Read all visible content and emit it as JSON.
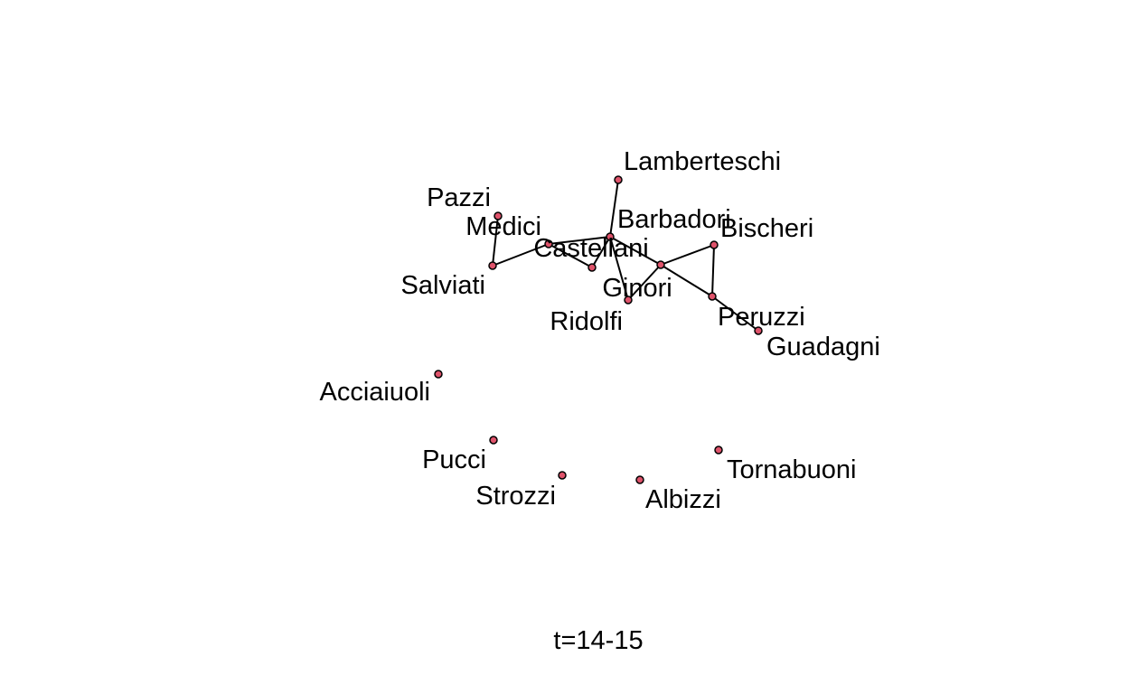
{
  "network": {
    "caption": "t=14-15",
    "node_color": "#DF536B",
    "edge_color": "#000000",
    "nodes": [
      {
        "id": "lamberteschi",
        "label": "Lamberteschi"
      },
      {
        "id": "pazzi",
        "label": "Pazzi"
      },
      {
        "id": "medici",
        "label": "Medici"
      },
      {
        "id": "barbadori",
        "label": "Barbadori"
      },
      {
        "id": "castellani",
        "label": "Castellani"
      },
      {
        "id": "bischeri",
        "label": "Bischeri"
      },
      {
        "id": "salviati",
        "label": "Salviati"
      },
      {
        "id": "ginori",
        "label": "Ginori"
      },
      {
        "id": "ridolfi",
        "label": "Ridolfi"
      },
      {
        "id": "peruzzi",
        "label": "Peruzzi"
      },
      {
        "id": "guadagni",
        "label": "Guadagni"
      },
      {
        "id": "acciaiuoli",
        "label": "Acciaiuoli"
      },
      {
        "id": "pucci",
        "label": "Pucci"
      },
      {
        "id": "strozzi",
        "label": "Strozzi"
      },
      {
        "id": "tornabuoni",
        "label": "Tornabuoni"
      },
      {
        "id": "albizzi",
        "label": "Albizzi"
      }
    ],
    "edges": [
      [
        "pazzi",
        "salviati"
      ],
      [
        "salviati",
        "medici"
      ],
      [
        "medici",
        "barbadori"
      ],
      [
        "medici",
        "castellani"
      ],
      [
        "castellani",
        "barbadori"
      ],
      [
        "lamberteschi",
        "barbadori"
      ],
      [
        "barbadori",
        "ginori"
      ],
      [
        "barbadori",
        "ridolfi"
      ],
      [
        "ginori",
        "ridolfi"
      ],
      [
        "ginori",
        "bischeri"
      ],
      [
        "ginori",
        "peruzzi"
      ],
      [
        "bischeri",
        "peruzzi"
      ],
      [
        "peruzzi",
        "guadagni"
      ]
    ]
  }
}
